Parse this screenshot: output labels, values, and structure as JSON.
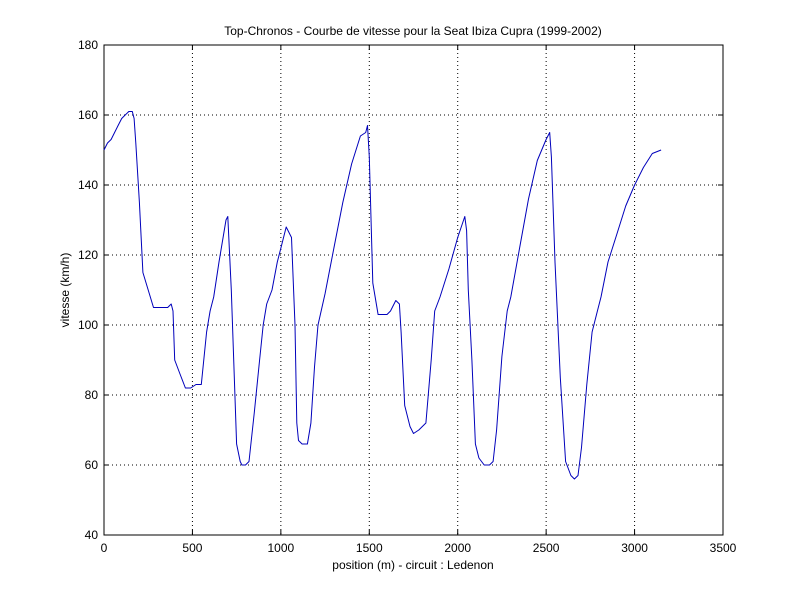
{
  "chart_data": {
    "type": "line",
    "title": "Top-Chronos - Courbe de vitesse pour la Seat Ibiza Cupra (1999-2002)",
    "xlabel": "position (m) - circuit : Ledenon",
    "ylabel": "vitesse (km/h)",
    "xlim": [
      0,
      3500
    ],
    "ylim": [
      40,
      180
    ],
    "xticks": [
      0,
      500,
      1000,
      1500,
      2000,
      2500,
      3000,
      3500
    ],
    "yticks": [
      40,
      60,
      80,
      100,
      120,
      140,
      160,
      180
    ],
    "grid": true,
    "series_color": "#0000bb",
    "series": [
      {
        "x": [
          0,
          20,
          40,
          60,
          80,
          100,
          120,
          140,
          160,
          170,
          180,
          200,
          220,
          250,
          280,
          300,
          330,
          360,
          380,
          390,
          400,
          430,
          460,
          490,
          520,
          550,
          580,
          600,
          620,
          650,
          690,
          700,
          720,
          750,
          770,
          780,
          800,
          820,
          850,
          880,
          900,
          920,
          950,
          980,
          1000,
          1030,
          1060,
          1080,
          1090,
          1100,
          1120,
          1150,
          1170,
          1190,
          1210,
          1250,
          1300,
          1350,
          1400,
          1450,
          1480,
          1490,
          1500,
          1520,
          1550,
          1580,
          1600,
          1620,
          1650,
          1670,
          1680,
          1700,
          1730,
          1750,
          1780,
          1820,
          1850,
          1870,
          1900,
          1950,
          2000,
          2040,
          2050,
          2060,
          2080,
          2100,
          2120,
          2150,
          2180,
          2200,
          2220,
          2250,
          2280,
          2300,
          2350,
          2400,
          2450,
          2500,
          2520,
          2530,
          2550,
          2580,
          2610,
          2640,
          2660,
          2680,
          2700,
          2730,
          2760,
          2790,
          2810,
          2850,
          2900,
          2950,
          3000,
          3050,
          3100,
          3150
        ],
        "values": [
          150,
          152,
          153,
          155,
          157,
          159,
          160,
          161,
          161,
          159,
          152,
          135,
          115,
          110,
          105,
          105,
          105,
          105,
          106,
          104,
          90,
          86,
          82,
          82,
          83,
          83,
          98,
          104,
          108,
          118,
          130,
          131,
          110,
          66,
          61,
          60,
          60,
          61,
          75,
          90,
          100,
          106,
          110,
          118,
          122,
          128,
          125,
          100,
          72,
          67,
          66,
          66,
          72,
          88,
          100,
          109,
          122,
          135,
          146,
          154,
          155,
          157,
          148,
          112,
          103,
          103,
          103,
          104,
          107,
          106,
          98,
          77,
          71,
          69,
          70,
          72,
          90,
          104,
          108,
          116,
          125,
          131,
          127,
          110,
          90,
          66,
          62,
          60,
          60,
          61,
          70,
          91,
          104,
          108,
          122,
          136,
          147,
          153,
          155,
          148,
          118,
          85,
          61,
          57,
          56,
          57,
          65,
          83,
          98,
          104,
          108,
          118,
          126,
          134,
          140,
          145,
          149,
          150
        ]
      }
    ]
  }
}
